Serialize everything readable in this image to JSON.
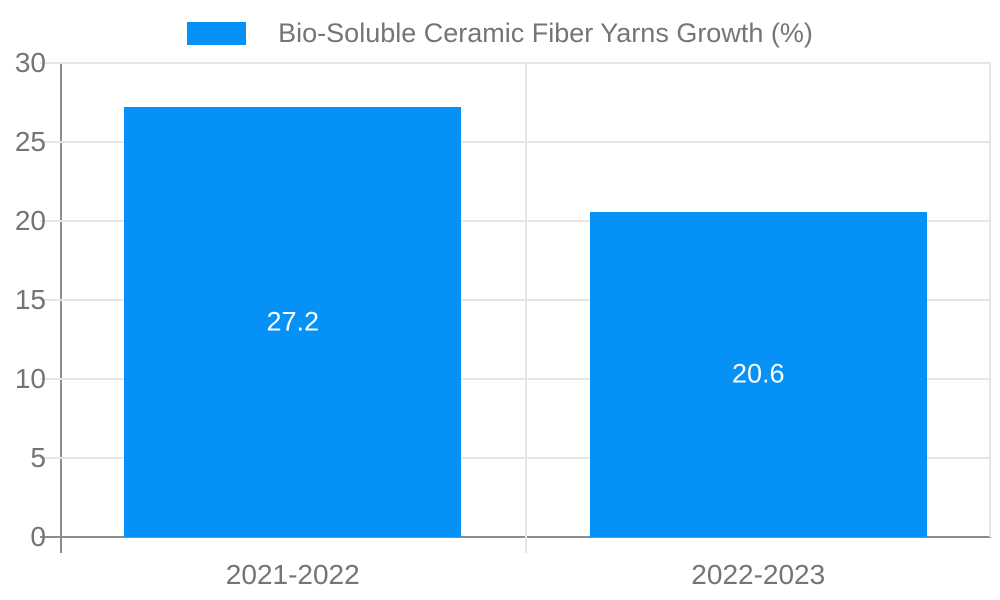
{
  "chart_data": {
    "type": "bar",
    "legend": "Bio-Soluble Ceramic Fiber Yarns Growth (%)",
    "legend_position": "top",
    "categories": [
      "2021-2022",
      "2022-2023"
    ],
    "series": [
      {
        "name": "Bio-Soluble Ceramic Fiber Yarns Growth (%)",
        "values": [
          27.2,
          20.6
        ],
        "value_labels": [
          "27.2",
          "20.6"
        ]
      }
    ],
    "ylim": [
      0,
      30
    ],
    "yticks": [
      0,
      5,
      10,
      15,
      20,
      25,
      30
    ],
    "grid": true,
    "xlabel": "",
    "ylabel": ""
  },
  "colors": {
    "bar": "#0591f5",
    "gridline": "#e6e6e6",
    "axis_line": "#8c8c8c",
    "axis_text": "#757575",
    "bar_value_text": "#ffffff",
    "background": "#ffffff"
  }
}
